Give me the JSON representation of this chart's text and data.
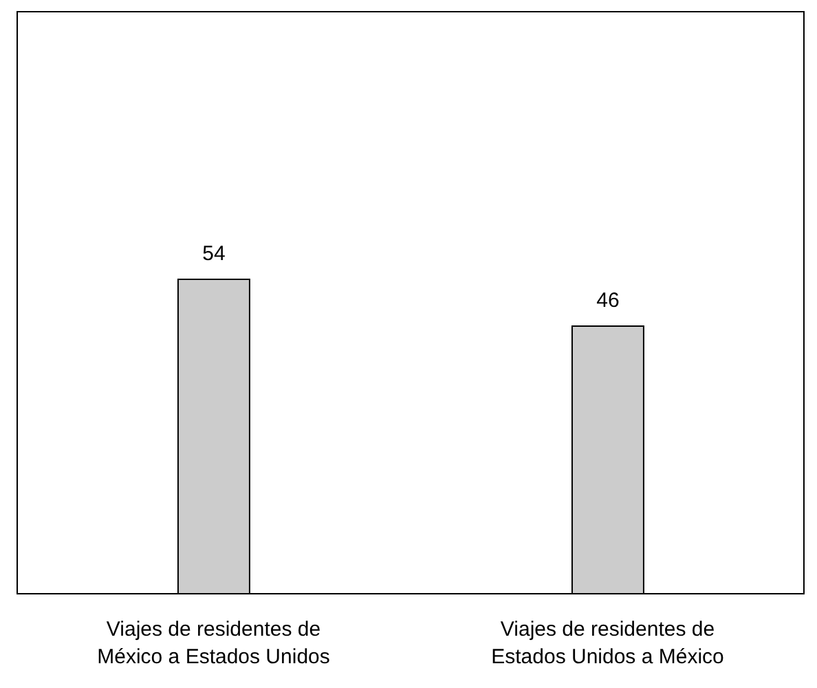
{
  "chart_data": {
    "type": "bar",
    "categories": [
      "Viajes de residentes de México a Estados Unidos",
      "Viajes de residentes de Estados Unidos a México"
    ],
    "values": [
      54,
      46
    ],
    "color": "#cccccc",
    "ylim": [
      0,
      100
    ],
    "tick_labels": "x",
    "data_labels": true
  }
}
